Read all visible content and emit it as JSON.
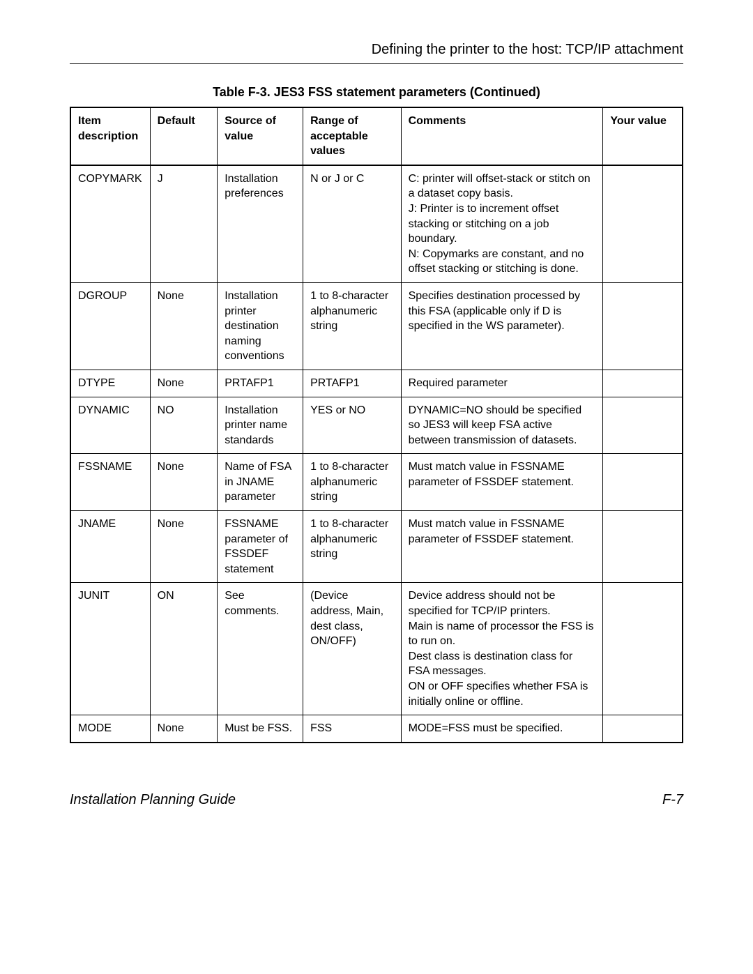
{
  "header": {
    "section_title": "Defining the printer to the host: TCP/IP attachment"
  },
  "table": {
    "title": "Table F-3. JES3 FSS statement parameters (Continued)",
    "columns": [
      "Item description",
      "Default",
      "Source of value",
      "Range of acceptable values",
      "Comments",
      "Your value"
    ],
    "rows": [
      {
        "item": "COPYMARK",
        "default": "J",
        "source": "Installation preferences",
        "range": "N or J or C",
        "comments": "C: printer will offset-stack or stitch on a dataset copy basis.\nJ: Printer is to increment offset stacking or stitching on a job boundary.\nN: Copymarks are constant, and no offset stacking or stitching is done.",
        "your": ""
      },
      {
        "item": "DGROUP",
        "default": "None",
        "source": "Installation printer destination naming conventions",
        "range": "1 to 8-character alphanumeric string",
        "comments": "Specifies destination processed by this FSA (applicable only if D is specified in the WS parameter).",
        "your": ""
      },
      {
        "item": "DTYPE",
        "default": "None",
        "source": "PRTAFP1",
        "range": "PRTAFP1",
        "comments": "Required parameter",
        "your": ""
      },
      {
        "item": "DYNAMIC",
        "default": "NO",
        "source": "Installation printer name standards",
        "range": "YES or NO",
        "comments": "DYNAMIC=NO should be specified so JES3 will keep FSA active between transmission of datasets.",
        "your": ""
      },
      {
        "item": "FSSNAME",
        "default": "None",
        "source": "Name of FSA in JNAME parameter",
        "range": "1 to 8-character alphanumeric string",
        "comments": "Must match value in FSSNAME parameter of FSSDEF statement.",
        "your": ""
      },
      {
        "item": "JNAME",
        "default": "None",
        "source": "FSSNAME parameter of FSSDEF statement",
        "range": "1 to 8-character alphanumeric string",
        "comments": "Must match value in FSSNAME parameter of FSSDEF statement.",
        "your": ""
      },
      {
        "item": "JUNIT",
        "default": "ON",
        "source": "See comments.",
        "range": "(Device address, Main, dest class, ON/OFF)",
        "comments": "Device address should not be specified for TCP/IP printers.\nMain is name of processor the FSS is to run on.\nDest class is destination class for FSA messages.\nON or OFF specifies whether FSA is initially online or offline.",
        "your": ""
      },
      {
        "item": "MODE",
        "default": "None",
        "source": "Must be FSS.",
        "range": "FSS",
        "comments": "MODE=FSS must be specified.",
        "your": ""
      }
    ]
  },
  "footer": {
    "left": "Installation Planning Guide",
    "right": "F-7"
  }
}
